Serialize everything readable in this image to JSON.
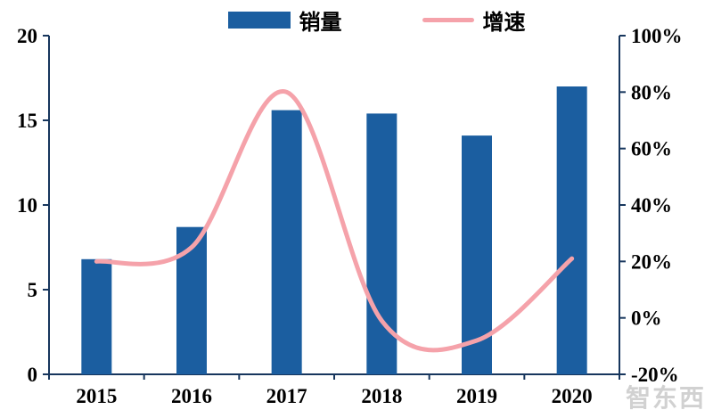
{
  "chart_data": {
    "type": "bar",
    "combo": "bar+line",
    "title": "",
    "categories": [
      "2015",
      "2016",
      "2017",
      "2018",
      "2019",
      "2020"
    ],
    "series": [
      {
        "name": "销量",
        "type": "bar",
        "axis": "left",
        "color": "#1B5EA0",
        "values": [
          6.8,
          8.7,
          15.6,
          15.4,
          14.1,
          17.0
        ]
      },
      {
        "name": "增速",
        "type": "line",
        "smooth": true,
        "axis": "right",
        "unit": "%",
        "color": "#F5A2AA",
        "values": [
          20,
          25,
          80,
          -1,
          -8,
          21
        ]
      }
    ],
    "left_axis": {
      "min": 0,
      "max": 20,
      "ticks": [
        0,
        5,
        10,
        15,
        20
      ]
    },
    "right_axis": {
      "min": -20,
      "max": 100,
      "ticks": [
        -20,
        0,
        20,
        40,
        60,
        80,
        100
      ],
      "suffix": "%"
    },
    "legend_position": "top",
    "grid": false
  },
  "legend": {
    "items": [
      {
        "label": "销量",
        "marker": "square",
        "color": "#1B5EA0"
      },
      {
        "label": "增速",
        "marker": "line",
        "color": "#F5A2AA"
      }
    ]
  },
  "watermark": {
    "text": "智东西",
    "color": "#C6C6C6"
  },
  "colors": {
    "bar": "#1B5EA0",
    "line": "#F5A2AA",
    "axis": "#17365D",
    "text": "#000000",
    "background": "#FFFFFF"
  }
}
